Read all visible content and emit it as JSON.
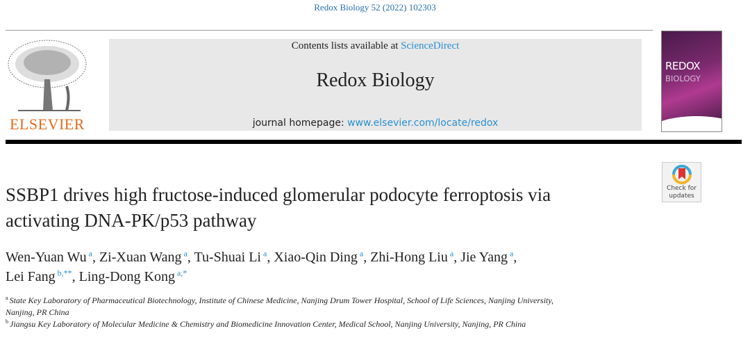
{
  "citation": "Redox Biology 52 (2022) 102303",
  "publisher": {
    "logo_text": "ELSEVIER"
  },
  "banner": {
    "contents_prefix": "Contents lists available at ",
    "contents_link": "ScienceDirect",
    "journal_title": "Redox Biology",
    "homepage_prefix": "journal homepage: ",
    "homepage_link": "www.elsevier.com/locate/redox"
  },
  "cover": {
    "line1": "REDOX",
    "line2": "BIOLOGY"
  },
  "check_updates": {
    "line1": "Check for",
    "line2": "updates"
  },
  "title": {
    "line1": "SSBP1 drives high fructose-induced glomerular podocyte ferroptosis via",
    "line2": "activating DNA-PK/p53 pathway"
  },
  "authors": [
    {
      "name": "Wen-Yuan Wu",
      "sup": "a",
      "sep": ", "
    },
    {
      "name": "Zi-Xuan Wang",
      "sup": "a",
      "sep": ", "
    },
    {
      "name": "Tu-Shuai Li",
      "sup": "a",
      "sep": ", "
    },
    {
      "name": "Xiao-Qin Ding",
      "sup": "a",
      "sep": ", "
    },
    {
      "name": "Zhi-Hong Liu",
      "sup": "a",
      "sep": ", "
    },
    {
      "name": "Jie Yang",
      "sup": "a",
      "sep": ","
    },
    {
      "name": "Lei Fang",
      "sup": "b,**",
      "sep": ", "
    },
    {
      "name": "Ling-Dong Kong",
      "sup": "a,*",
      "sep": ""
    }
  ],
  "affiliations": [
    {
      "mark": "a",
      "text": "State Key Laboratory of Pharmaceutical Biotechnology, Institute of Chinese Medicine, Nanjing Drum Tower Hospital, School of Life Sciences, Nanjing University,",
      "text2": "Nanjing, PR China"
    },
    {
      "mark": "b",
      "text": "Jiangsu Key Laboratory of Molecular Medicine & Chemistry and Biomedicine Innovation Center, Medical School, Nanjing University, Nanjing, PR China"
    }
  ]
}
